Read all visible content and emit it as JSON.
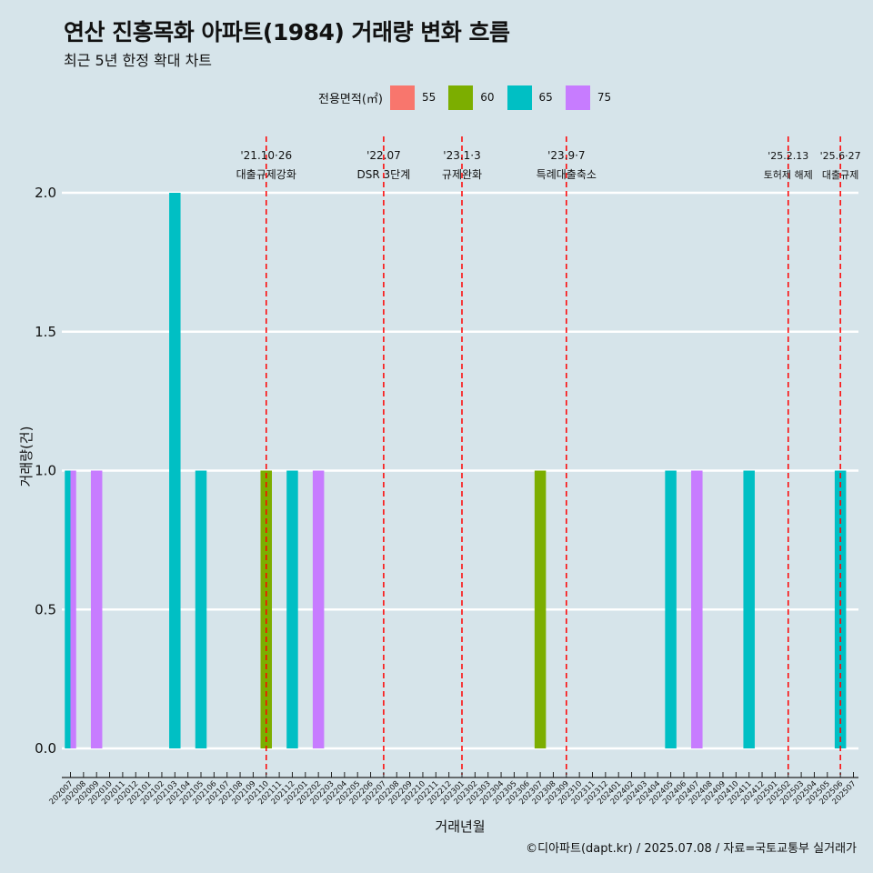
{
  "header": {
    "title": "연산 진흥목화 아파트(1984) 거래량 변화 흐름",
    "subtitle": "최근 5년 한정 확대 차트"
  },
  "legend": {
    "title": "전용면적(㎡)",
    "items": [
      {
        "label": "55",
        "color": "#F8766D"
      },
      {
        "label": "60",
        "color": "#7CAE00"
      },
      {
        "label": "65",
        "color": "#00BFC4"
      },
      {
        "label": "75",
        "color": "#C77CFF"
      }
    ]
  },
  "caption": "©디아파트(dapt.kr) / 2025.07.08 / 자료=국토교통부 실거래가",
  "chart_data": {
    "type": "bar",
    "xlabel": "거래년월",
    "ylabel": "거래량(건)",
    "ylim": [
      0,
      2
    ],
    "yticks": [
      "0.0",
      "0.5",
      "1.0",
      "1.5",
      "2.0"
    ],
    "grid": "horizontal",
    "legend_position": "top",
    "categories": [
      "202007",
      "202008",
      "202009",
      "202010",
      "202011",
      "202012",
      "202101",
      "202102",
      "202103",
      "202104",
      "202105",
      "202106",
      "202107",
      "202108",
      "202109",
      "202110",
      "202111",
      "202112",
      "202201",
      "202202",
      "202203",
      "202204",
      "202205",
      "202206",
      "202207",
      "202208",
      "202209",
      "202210",
      "202211",
      "202212",
      "202301",
      "202302",
      "202303",
      "202304",
      "202305",
      "202306",
      "202307",
      "202308",
      "202309",
      "202310",
      "202311",
      "202312",
      "202401",
      "202402",
      "202403",
      "202404",
      "202405",
      "202406",
      "202407",
      "202408",
      "202409",
      "202410",
      "202411",
      "202412",
      "202501",
      "202502",
      "202503",
      "202504",
      "202505",
      "202506",
      "202507"
    ],
    "series": [
      {
        "name": "55",
        "color": "#F8766D",
        "values": [
          0,
          0,
          0,
          0,
          0,
          0,
          0,
          0,
          0,
          0,
          0,
          0,
          0,
          0,
          0,
          0,
          0,
          0,
          0,
          0,
          0,
          0,
          0,
          0,
          0,
          0,
          0,
          0,
          0,
          0,
          0,
          0,
          0,
          0,
          0,
          0,
          0,
          0,
          0,
          0,
          0,
          0,
          0,
          0,
          0,
          0,
          0,
          0,
          0,
          0,
          0,
          0,
          0,
          0,
          0,
          0,
          0,
          0,
          0,
          0,
          0
        ]
      },
      {
        "name": "60",
        "color": "#7CAE00",
        "values": [
          0,
          0,
          0,
          0,
          0,
          0,
          0,
          0,
          0,
          0,
          0,
          0,
          0,
          0,
          0,
          1,
          0,
          0,
          0,
          0,
          0,
          0,
          0,
          0,
          0,
          0,
          0,
          0,
          0,
          0,
          0,
          0,
          0,
          0,
          0,
          0,
          1,
          0,
          0,
          0,
          0,
          0,
          0,
          0,
          0,
          0,
          0,
          0,
          0,
          0,
          0,
          0,
          0,
          0,
          0,
          0,
          0,
          0,
          0,
          0,
          0
        ]
      },
      {
        "name": "65",
        "color": "#00BFC4",
        "values": [
          1,
          0,
          0,
          0,
          0,
          0,
          0,
          0,
          2,
          0,
          1,
          0,
          0,
          0,
          0,
          0,
          0,
          1,
          0,
          0,
          0,
          0,
          0,
          0,
          0,
          0,
          0,
          0,
          0,
          0,
          0,
          0,
          0,
          0,
          0,
          0,
          0,
          0,
          0,
          0,
          0,
          0,
          0,
          0,
          0,
          0,
          1,
          0,
          0,
          0,
          0,
          0,
          1,
          0,
          0,
          0,
          0,
          0,
          0,
          1,
          0
        ]
      },
      {
        "name": "75",
        "color": "#C77CFF",
        "values": [
          1,
          0,
          1,
          0,
          0,
          0,
          0,
          0,
          0,
          0,
          0,
          0,
          0,
          0,
          0,
          0,
          0,
          0,
          0,
          1,
          0,
          0,
          0,
          0,
          0,
          0,
          0,
          0,
          0,
          0,
          0,
          0,
          0,
          0,
          0,
          0,
          0,
          0,
          0,
          0,
          0,
          0,
          0,
          0,
          0,
          0,
          0,
          0,
          1,
          0,
          0,
          0,
          0,
          0,
          0,
          0,
          0,
          0,
          0,
          0,
          0
        ]
      }
    ],
    "annotations": [
      {
        "at": "202110",
        "date": "'21.10·26",
        "text": "대출규제강화"
      },
      {
        "at": "202207",
        "date": "'22.07",
        "text": "DSR 3단계"
      },
      {
        "at": "202301",
        "date": "'23.1·3",
        "text": "규제완화"
      },
      {
        "at": "202309",
        "date": "'23.9·7",
        "text": "특례대출축소"
      },
      {
        "at": "202502",
        "date": "'25.2.13",
        "text": "토허제 해제"
      },
      {
        "at": "202506",
        "date": "'25.6·27",
        "text": "대출규제"
      }
    ]
  }
}
